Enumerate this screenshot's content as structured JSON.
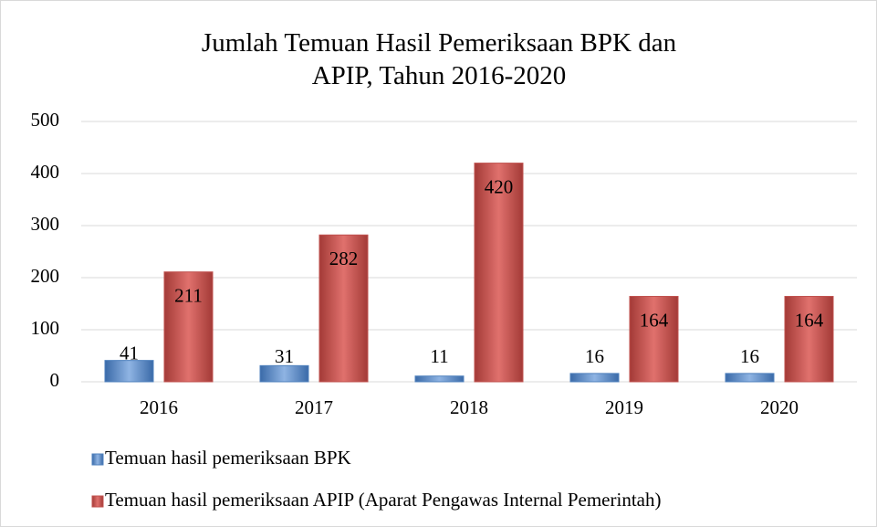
{
  "chart_data": {
    "type": "bar",
    "title": "Jumlah Temuan Hasil Pemeriksaan BPK dan APIP, Tahun 2016-2020",
    "categories": [
      "2016",
      "2017",
      "2018",
      "2019",
      "2020"
    ],
    "series": [
      {
        "name": "Temuan hasil pemeriksaan BPK",
        "color": "#4f81bd",
        "values": [
          41,
          31,
          11,
          16,
          16
        ]
      },
      {
        "name": "Temuan hasil pemeriksaan APIP (Aparat Pengawas Internal Pemerintah)",
        "color": "#c0504d",
        "values": [
          211,
          282,
          420,
          164,
          164
        ]
      }
    ],
    "ylim": [
      0,
      500
    ],
    "yticks": [
      0,
      100,
      200,
      300,
      400,
      500
    ],
    "grid": true,
    "legend": "bottom"
  }
}
